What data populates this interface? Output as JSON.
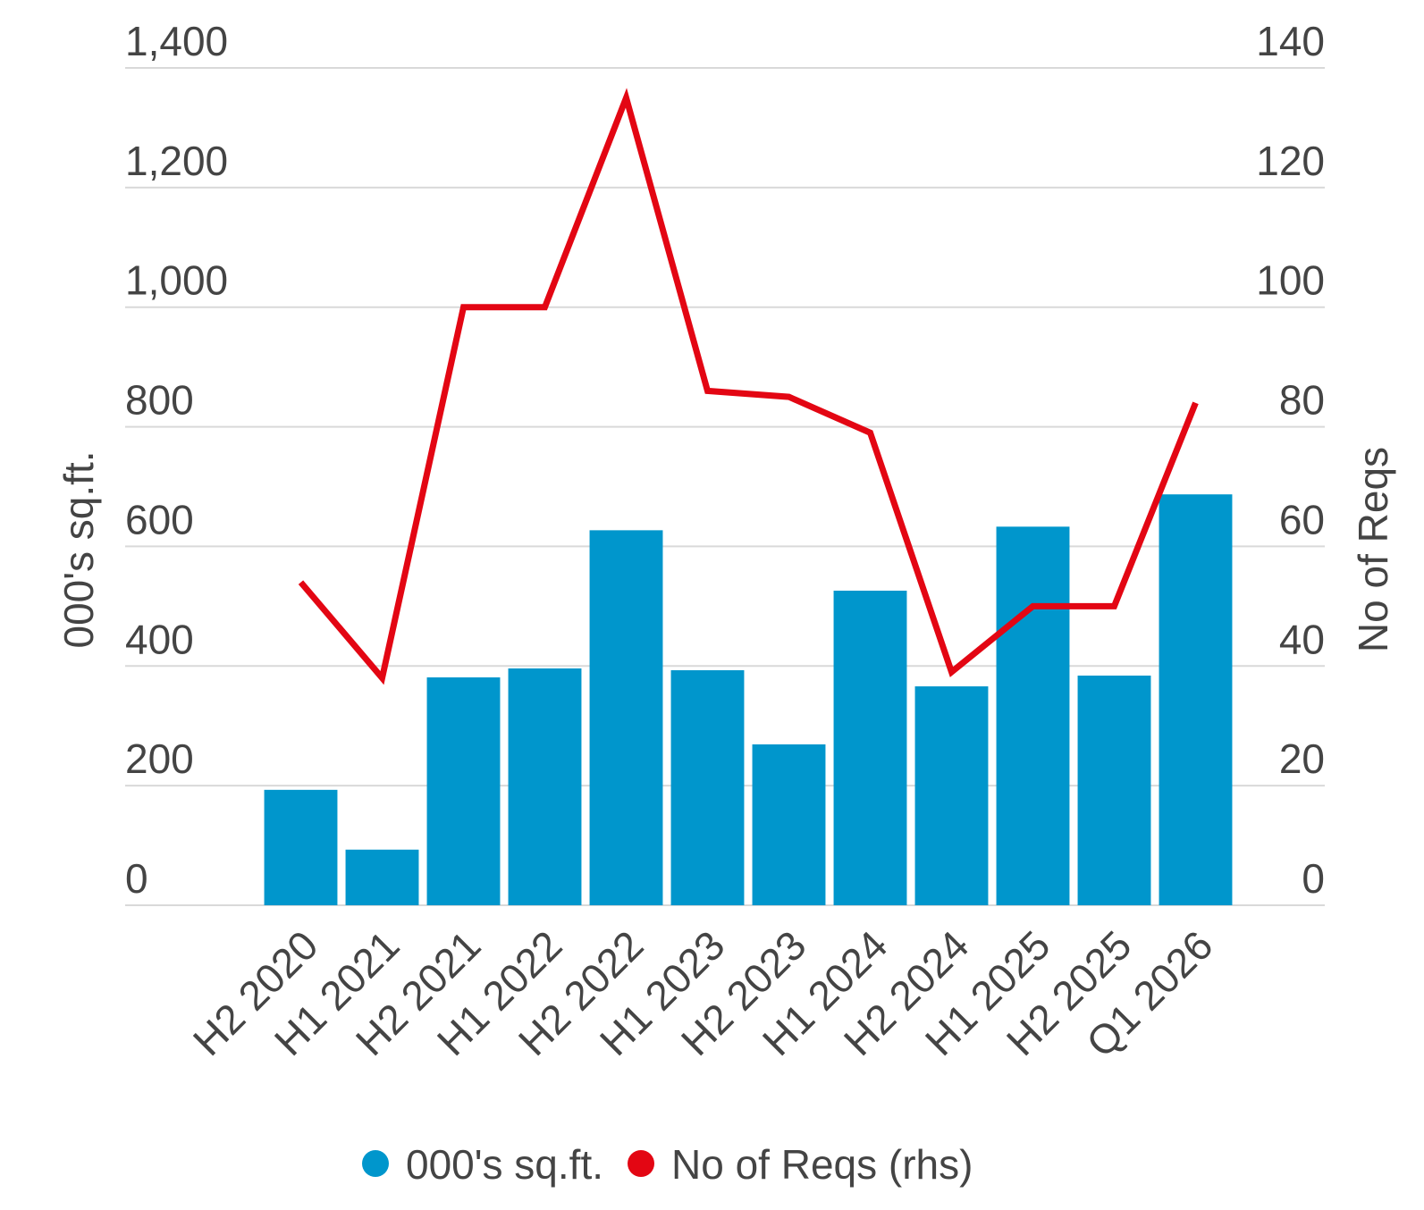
{
  "chart_data": {
    "type": "bar",
    "categories": [
      "H2 2020",
      "H1 2021",
      "H2 2021",
      "H1 2022",
      "H2 2022",
      "H1 2023",
      "H2 2023",
      "H1 2024",
      "H2 2024",
      "H1 2025",
      "H2 2025",
      "Q1 2026"
    ],
    "series": [
      {
        "name": "000's sq.ft.",
        "type": "bar",
        "color": "#0096cc",
        "values": [
          193,
          93,
          381,
          396,
          627,
          393,
          269,
          526,
          366,
          633,
          384,
          687
        ]
      },
      {
        "name": "No of Reqs (rhs)",
        "type": "line",
        "axis": "y2",
        "color": "#e30613",
        "values": [
          54,
          38,
          100,
          100,
          135,
          86,
          85,
          79,
          39,
          50,
          50,
          84
        ]
      }
    ],
    "ylabel": "000's sq.ft.",
    "y2label": "No of Reqs",
    "ylim": [
      0,
      1400
    ],
    "yticks": [
      0,
      200,
      400,
      600,
      800,
      {
        "value": 1000,
        "label": "1,000"
      },
      {
        "value": 1200,
        "label": "1,200"
      },
      {
        "value": 1400,
        "label": "1,400"
      }
    ],
    "y2lim": [
      0,
      140
    ],
    "y2ticks": [
      0,
      20,
      40,
      60,
      80,
      100,
      120,
      140
    ],
    "grid": true,
    "legend": "bottom"
  }
}
